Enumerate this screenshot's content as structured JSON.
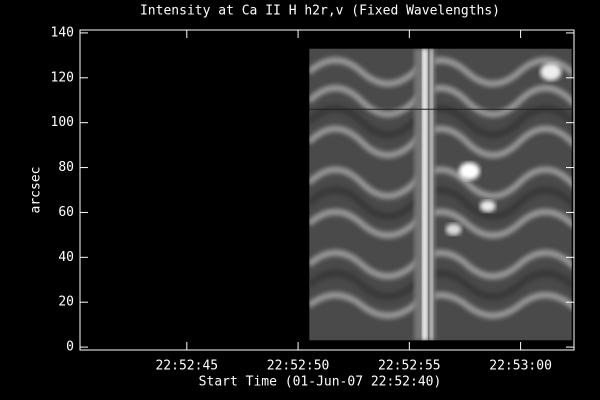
{
  "chart_data": {
    "type": "image",
    "title": "Intensity at Ca II H h2r,v (Fixed Wavelengths)",
    "xlabel": "Start Time (01-Jun-07 22:52:40)",
    "ylabel": "arcsec",
    "xlim": [
      0.2,
      22.4
    ],
    "ylim": [
      -1.3,
      141.3
    ],
    "xticks": [
      {
        "value": 5,
        "label": "22:52:45"
      },
      {
        "value": 10,
        "label": "22:52:50"
      },
      {
        "value": 15,
        "label": "22:52:55"
      },
      {
        "value": 20,
        "label": "22:53:00"
      }
    ],
    "yticks": [
      0,
      20,
      40,
      60,
      80,
      100,
      120,
      140
    ],
    "image_x": [
      10.5,
      22.3
    ],
    "image_y": [
      3,
      133
    ],
    "hline": 106,
    "background": "#000000",
    "axis_color": "#ffffff"
  }
}
